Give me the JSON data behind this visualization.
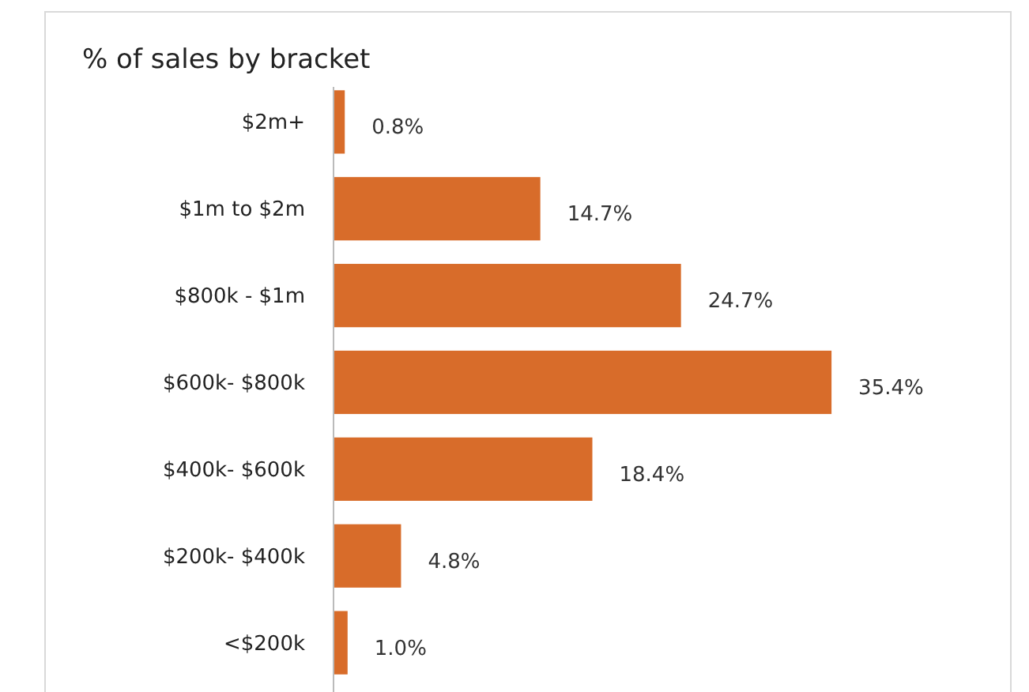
{
  "chart_data": {
    "type": "bar",
    "orientation": "horizontal",
    "title": "% of sales by bracket",
    "categories": [
      "$2m+",
      "$1m to $2m",
      "$800k - $1m",
      "$600k- $800k",
      "$400k- $600k",
      "$200k- $400k",
      "<$200k"
    ],
    "values": [
      0.8,
      14.7,
      24.7,
      35.4,
      18.4,
      4.8,
      1.0
    ],
    "value_labels": [
      "0.8%",
      "14.7%",
      "24.7%",
      "35.4%",
      "18.4%",
      "4.8%",
      "1.0%"
    ],
    "color": "#d86c2a"
  }
}
